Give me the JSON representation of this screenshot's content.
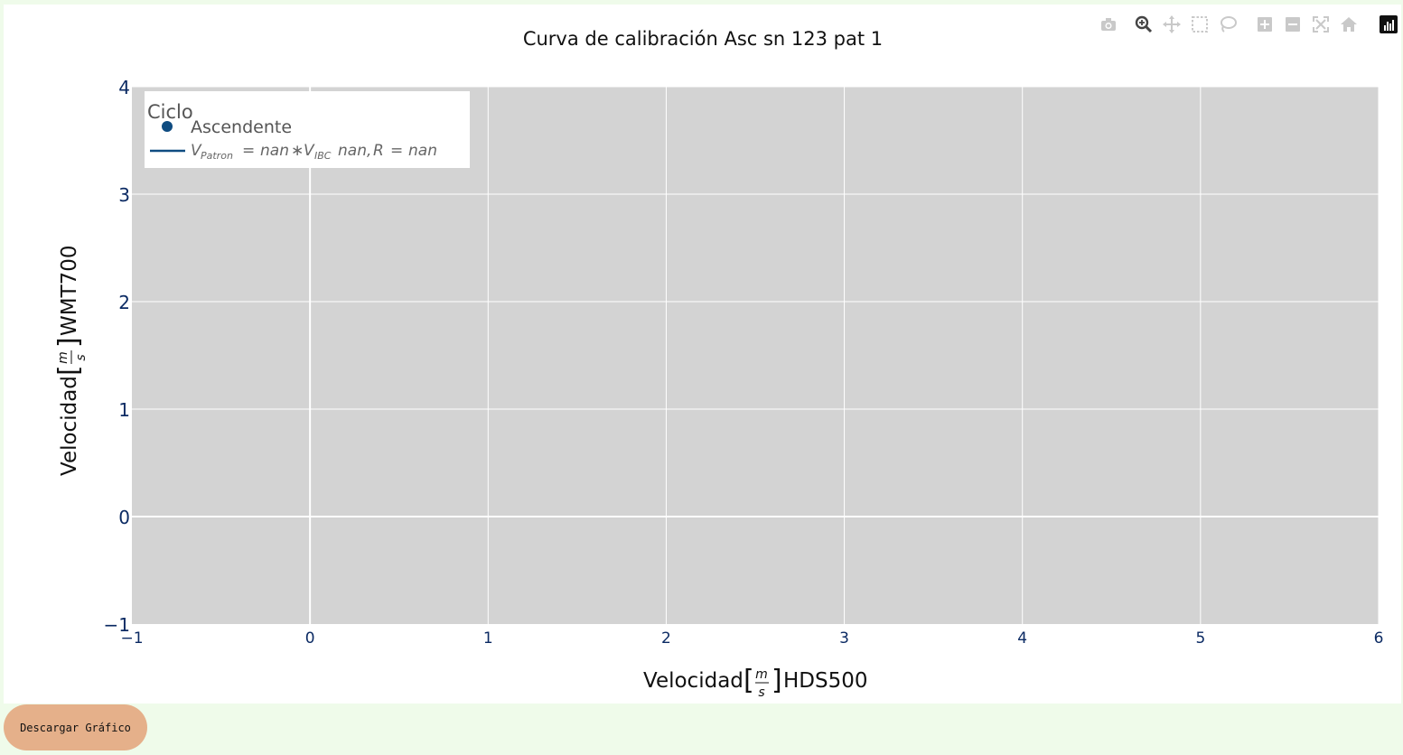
{
  "download_button": {
    "label": "Descargar Gráfico"
  },
  "modebar": {
    "icons": [
      "camera-icon",
      "zoom-icon",
      "pan-icon",
      "box-select-icon",
      "lasso-icon",
      "zoom-in-icon",
      "zoom-out-icon",
      "autoscale-icon",
      "home-icon",
      "plotly-logo-icon"
    ]
  },
  "colors": {
    "plot_bg": "#d3d3d3",
    "series": "#0f4c81",
    "page_bg": "#effbea",
    "button": "#e5b08a"
  },
  "chart_data": {
    "type": "scatter",
    "title": "Curva de calibración Asc sn 123 pat 1",
    "xlabel": "Velocidad[m/s] HDS500",
    "ylabel": "Velocidad[m/s] WMT700",
    "xlim": [
      -1,
      6
    ],
    "ylim": [
      -1,
      4
    ],
    "x_ticks": [
      "−1",
      "0",
      "1",
      "2",
      "3",
      "4",
      "5",
      "6"
    ],
    "y_ticks": [
      "−1",
      "0",
      "1",
      "2",
      "3",
      "4"
    ],
    "grid": true,
    "legend_position": "top-left",
    "legend": {
      "title": "Ciclo",
      "entries": [
        "Ascendente",
        "V_Patron = nan * V_IBC nan, R = nan"
      ]
    },
    "series": [
      {
        "name": "Ascendente",
        "mode": "markers",
        "x": [],
        "y": []
      },
      {
        "name": "V_Patron = nan * V_IBC nan, R = nan",
        "mode": "lines",
        "x": [],
        "y": []
      }
    ]
  }
}
